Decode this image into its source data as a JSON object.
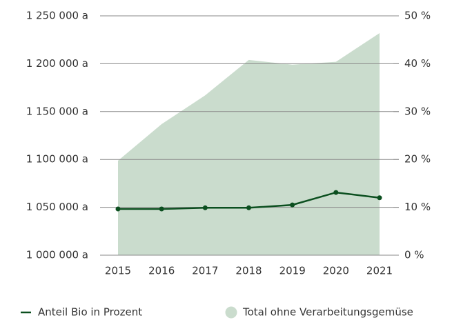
{
  "chart_data": {
    "type": "line",
    "categories": [
      "2015",
      "2016",
      "2017",
      "2018",
      "2019",
      "2020",
      "2021"
    ],
    "series": [
      {
        "name": "Anteil Bio in Prozent",
        "type": "line",
        "axis": "y2",
        "color": "#0b4f1f",
        "values": [
          9.65,
          9.65,
          9.9,
          9.9,
          10.5,
          13.1,
          12.0
        ]
      },
      {
        "name": "Total ohne Verarbeitungsgemüse",
        "type": "area",
        "axis": "y",
        "color": "#cadccd",
        "values": [
          1098700,
          1136900,
          1167000,
          1204000,
          1199000,
          1202000,
          1232000
        ]
      }
    ],
    "ylim": [
      1000000,
      1250000
    ],
    "yticks": [
      {
        "value": 1000000,
        "label": "1 000 000 a"
      },
      {
        "value": 1050000,
        "label": "1 050 000 a"
      },
      {
        "value": 1100000,
        "label": "1 100 000 a"
      },
      {
        "value": 1150000,
        "label": "1 150 000 a"
      },
      {
        "value": 1200000,
        "label": "1 200 000 a"
      },
      {
        "value": 1250000,
        "label": "1 250 000 a"
      }
    ],
    "y2lim": [
      0,
      50
    ],
    "y2ticks": [
      {
        "value": 0,
        "label": "0 %"
      },
      {
        "value": 10,
        "label": "10 %"
      },
      {
        "value": 20,
        "label": "20 %"
      },
      {
        "value": 30,
        "label": "30 %"
      },
      {
        "value": 40,
        "label": "40 %"
      },
      {
        "value": 50,
        "label": "50 %"
      }
    ],
    "grid": true
  }
}
